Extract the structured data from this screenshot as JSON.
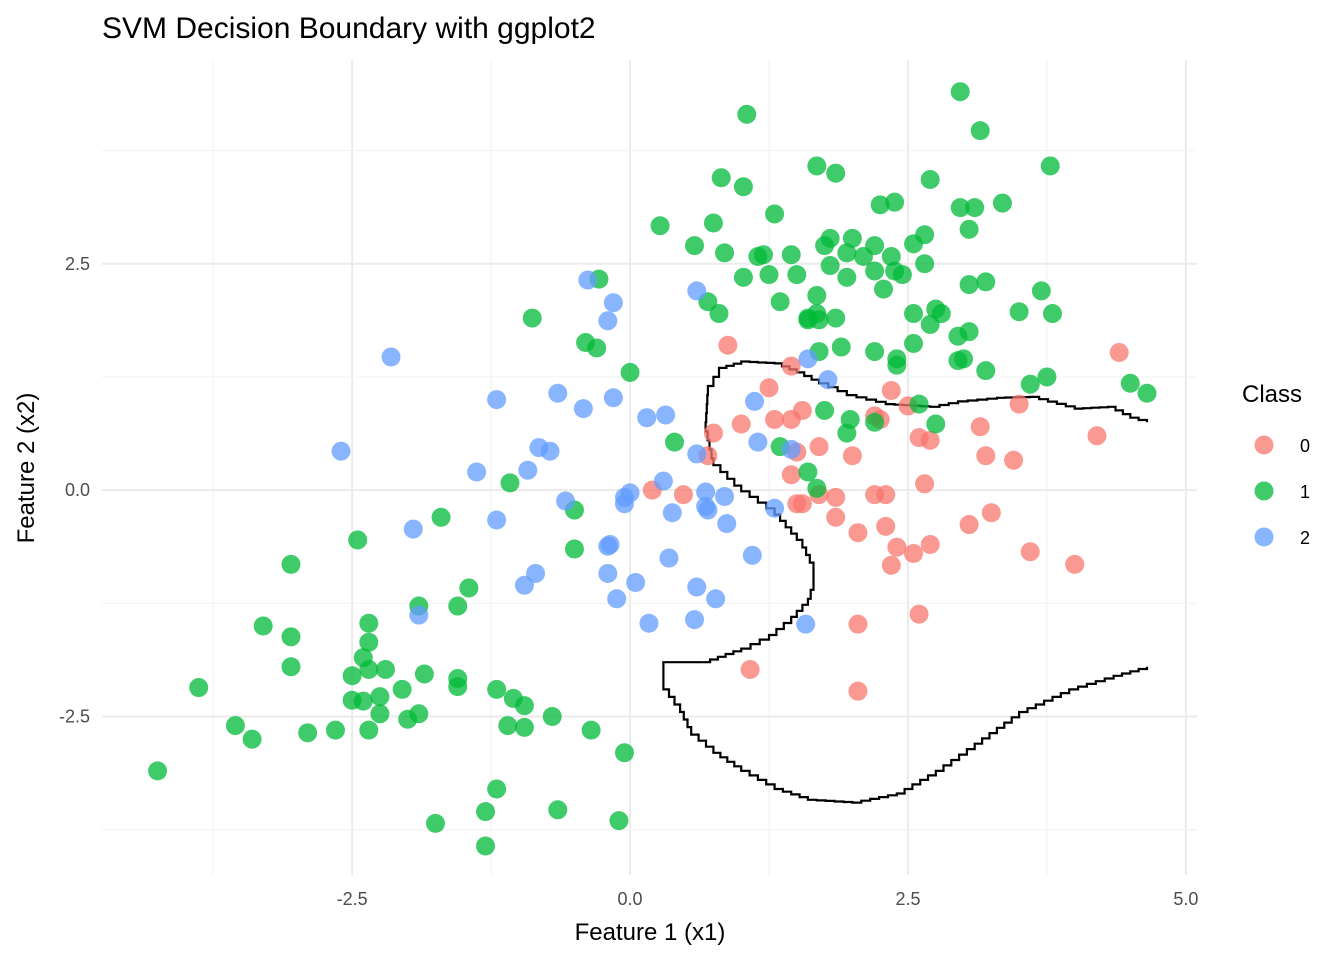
{
  "chart_data": {
    "type": "scatter",
    "title": "SVM Decision Boundary with ggplot2",
    "xlabel": "Feature 1 (x1)",
    "ylabel": "Feature 2 (x2)",
    "xlim": [
      -4.75,
      5.1
    ],
    "ylim": [
      -4.25,
      4.75
    ],
    "x_ticks": [
      -2.5,
      0.0,
      2.5,
      5.0
    ],
    "x_tick_labels": [
      "-2.5",
      "0.0",
      "2.5",
      "5.0"
    ],
    "y_ticks": [
      -2.5,
      0.0,
      2.5
    ],
    "y_tick_labels": [
      "-2.5",
      "0.0",
      "2.5"
    ],
    "grid": true,
    "legend": {
      "title": "Class",
      "position": "right"
    },
    "series": [
      {
        "name": "0",
        "color": "#F8766D",
        "points": [
          [
            0.88,
            1.6
          ],
          [
            1.25,
            1.13
          ],
          [
            1.45,
            1.37
          ],
          [
            2.35,
            1.1
          ],
          [
            2.5,
            0.93
          ],
          [
            2.2,
            0.82
          ],
          [
            1.0,
            0.73
          ],
          [
            0.75,
            0.63
          ],
          [
            0.7,
            0.38
          ],
          [
            1.3,
            0.78
          ],
          [
            1.45,
            0.78
          ],
          [
            1.55,
            0.88
          ],
          [
            2.25,
            0.78
          ],
          [
            1.5,
            0.42
          ],
          [
            1.7,
            0.48
          ],
          [
            2.0,
            0.38
          ],
          [
            3.15,
            0.7
          ],
          [
            4.4,
            1.52
          ],
          [
            4.2,
            0.6
          ],
          [
            3.5,
            0.95
          ],
          [
            2.7,
            0.55
          ],
          [
            2.6,
            0.58
          ],
          [
            3.2,
            0.38
          ],
          [
            3.45,
            0.33
          ],
          [
            2.65,
            0.07
          ],
          [
            1.45,
            0.17
          ],
          [
            1.7,
            -0.05
          ],
          [
            1.85,
            -0.08
          ],
          [
            1.5,
            -0.15
          ],
          [
            1.55,
            -0.15
          ],
          [
            1.85,
            -0.3
          ],
          [
            2.2,
            -0.05
          ],
          [
            2.3,
            -0.05
          ],
          [
            0.2,
            0.0
          ],
          [
            0.48,
            -0.05
          ],
          [
            2.05,
            -0.47
          ],
          [
            2.3,
            -0.4
          ],
          [
            2.4,
            -0.63
          ],
          [
            2.7,
            -0.6
          ],
          [
            2.55,
            -0.7
          ],
          [
            3.05,
            -0.38
          ],
          [
            3.25,
            -0.25
          ],
          [
            3.6,
            -0.68
          ],
          [
            4.0,
            -0.82
          ],
          [
            2.35,
            -0.83
          ],
          [
            2.6,
            -1.37
          ],
          [
            2.05,
            -1.48
          ],
          [
            1.08,
            -1.98
          ],
          [
            2.05,
            -2.22
          ]
        ]
      },
      {
        "name": "1",
        "color": "#00BA38",
        "points": [
          [
            2.97,
            4.4
          ],
          [
            1.05,
            4.15
          ],
          [
            3.15,
            3.97
          ],
          [
            1.68,
            3.58
          ],
          [
            1.85,
            3.5
          ],
          [
            2.7,
            3.43
          ],
          [
            0.82,
            3.45
          ],
          [
            1.02,
            3.35
          ],
          [
            3.78,
            3.58
          ],
          [
            3.1,
            3.12
          ],
          [
            2.97,
            3.12
          ],
          [
            2.25,
            3.15
          ],
          [
            2.38,
            3.18
          ],
          [
            3.35,
            3.17
          ],
          [
            1.3,
            3.05
          ],
          [
            0.75,
            2.95
          ],
          [
            0.27,
            2.92
          ],
          [
            1.8,
            2.78
          ],
          [
            2.0,
            2.78
          ],
          [
            1.75,
            2.7
          ],
          [
            0.58,
            2.7
          ],
          [
            2.2,
            2.7
          ],
          [
            2.55,
            2.72
          ],
          [
            2.65,
            2.82
          ],
          [
            3.05,
            2.88
          ],
          [
            1.15,
            2.58
          ],
          [
            1.2,
            2.6
          ],
          [
            1.45,
            2.6
          ],
          [
            1.95,
            2.62
          ],
          [
            2.1,
            2.58
          ],
          [
            2.35,
            2.58
          ],
          [
            1.25,
            2.38
          ],
          [
            1.5,
            2.38
          ],
          [
            1.8,
            2.48
          ],
          [
            2.2,
            2.42
          ],
          [
            2.38,
            2.42
          ],
          [
            2.45,
            2.38
          ],
          [
            2.65,
            2.5
          ],
          [
            1.95,
            2.35
          ],
          [
            0.85,
            2.62
          ],
          [
            1.02,
            2.35
          ],
          [
            -0.28,
            2.33
          ],
          [
            3.05,
            2.27
          ],
          [
            3.2,
            2.3
          ],
          [
            3.7,
            2.2
          ],
          [
            2.28,
            2.22
          ],
          [
            1.68,
            2.15
          ],
          [
            0.7,
            2.08
          ],
          [
            1.35,
            2.08
          ],
          [
            2.75,
            2.0
          ],
          [
            2.8,
            1.95
          ],
          [
            3.5,
            1.97
          ],
          [
            3.8,
            1.95
          ],
          [
            0.8,
            1.95
          ],
          [
            1.6,
            1.88
          ],
          [
            1.7,
            1.88
          ],
          [
            1.68,
            1.95
          ],
          [
            1.85,
            1.9
          ],
          [
            2.55,
            1.95
          ],
          [
            2.55,
            1.62
          ],
          [
            2.7,
            1.83
          ],
          [
            2.95,
            1.7
          ],
          [
            3.05,
            1.75
          ],
          [
            -0.88,
            1.9
          ],
          [
            -0.4,
            1.63
          ],
          [
            -0.3,
            1.57
          ],
          [
            1.9,
            1.58
          ],
          [
            1.7,
            1.53
          ],
          [
            2.2,
            1.53
          ],
          [
            2.4,
            1.45
          ],
          [
            2.4,
            1.38
          ],
          [
            2.95,
            1.43
          ],
          [
            3.0,
            1.45
          ],
          [
            3.2,
            1.32
          ],
          [
            3.6,
            1.17
          ],
          [
            3.75,
            1.25
          ],
          [
            4.5,
            1.18
          ],
          [
            4.65,
            1.07
          ],
          [
            0.0,
            1.3
          ],
          [
            2.6,
            0.95
          ],
          [
            1.75,
            0.88
          ],
          [
            1.98,
            0.78
          ],
          [
            2.2,
            0.75
          ],
          [
            2.75,
            0.73
          ],
          [
            1.95,
            0.63
          ],
          [
            0.4,
            0.53
          ],
          [
            1.35,
            0.48
          ],
          [
            1.6,
            0.2
          ],
          [
            1.68,
            0.02
          ],
          [
            -1.08,
            0.08
          ],
          [
            -0.5,
            -0.22
          ],
          [
            -1.7,
            -0.3
          ],
          [
            -2.45,
            -0.55
          ],
          [
            -0.5,
            -0.65
          ],
          [
            -3.05,
            -0.82
          ],
          [
            -1.45,
            -1.08
          ],
          [
            -1.55,
            -1.28
          ],
          [
            -1.9,
            -1.28
          ],
          [
            -2.35,
            -1.47
          ],
          [
            -3.3,
            -1.5
          ],
          [
            -3.05,
            -1.62
          ],
          [
            -2.35,
            -1.68
          ],
          [
            -2.4,
            -1.85
          ],
          [
            -2.35,
            -1.98
          ],
          [
            -3.05,
            -1.95
          ],
          [
            -2.5,
            -2.05
          ],
          [
            -2.2,
            -1.98
          ],
          [
            -1.85,
            -2.03
          ],
          [
            -1.55,
            -2.08
          ],
          [
            -2.05,
            -2.2
          ],
          [
            -2.25,
            -2.28
          ],
          [
            -1.55,
            -2.17
          ],
          [
            -1.2,
            -2.2
          ],
          [
            -1.05,
            -2.3
          ],
          [
            -0.95,
            -2.38
          ],
          [
            -2.4,
            -2.33
          ],
          [
            -2.5,
            -2.32
          ],
          [
            -3.88,
            -2.18
          ],
          [
            -2.25,
            -2.47
          ],
          [
            -2.0,
            -2.53
          ],
          [
            -1.9,
            -2.47
          ],
          [
            -0.7,
            -2.5
          ],
          [
            -2.35,
            -2.65
          ],
          [
            -2.65,
            -2.65
          ],
          [
            -2.9,
            -2.68
          ],
          [
            -3.55,
            -2.6
          ],
          [
            -3.4,
            -2.75
          ],
          [
            -1.1,
            -2.6
          ],
          [
            -0.95,
            -2.62
          ],
          [
            -0.35,
            -2.65
          ],
          [
            -0.05,
            -2.9
          ],
          [
            -1.2,
            -3.3
          ],
          [
            -4.25,
            -3.1
          ],
          [
            -1.3,
            -3.55
          ],
          [
            -0.65,
            -3.53
          ],
          [
            -1.75,
            -3.68
          ],
          [
            -0.1,
            -3.65
          ],
          [
            -1.3,
            -3.93
          ],
          [
            1.6,
            1.9
          ]
        ]
      },
      {
        "name": "2",
        "color": "#619CFF",
        "points": [
          [
            -0.38,
            2.32
          ],
          [
            -0.15,
            2.07
          ],
          [
            -0.2,
            1.87
          ],
          [
            0.6,
            2.2
          ],
          [
            -2.15,
            1.47
          ],
          [
            -1.2,
            1.0
          ],
          [
            -0.65,
            1.07
          ],
          [
            -0.42,
            0.9
          ],
          [
            -0.15,
            1.02
          ],
          [
            1.6,
            1.45
          ],
          [
            1.78,
            1.22
          ],
          [
            1.12,
            0.98
          ],
          [
            0.15,
            0.8
          ],
          [
            0.32,
            0.83
          ],
          [
            1.15,
            0.53
          ],
          [
            1.45,
            0.45
          ],
          [
            -2.6,
            0.43
          ],
          [
            -0.82,
            0.47
          ],
          [
            -0.72,
            0.43
          ],
          [
            -1.38,
            0.2
          ],
          [
            -0.92,
            0.22
          ],
          [
            0.6,
            0.4
          ],
          [
            0.3,
            0.1
          ],
          [
            -0.05,
            -0.08
          ],
          [
            0.0,
            -0.03
          ],
          [
            -0.05,
            -0.15
          ],
          [
            -0.58,
            -0.12
          ],
          [
            0.68,
            -0.02
          ],
          [
            0.68,
            -0.18
          ],
          [
            0.85,
            -0.07
          ],
          [
            0.38,
            -0.25
          ],
          [
            0.7,
            -0.22
          ],
          [
            0.87,
            -0.37
          ],
          [
            1.3,
            -0.2
          ],
          [
            -1.95,
            -0.43
          ],
          [
            -1.2,
            -0.33
          ],
          [
            -0.18,
            -0.6
          ],
          [
            -0.2,
            -0.62
          ],
          [
            0.35,
            -0.75
          ],
          [
            1.1,
            -0.72
          ],
          [
            -0.2,
            -0.92
          ],
          [
            -0.85,
            -0.92
          ],
          [
            -0.95,
            -1.05
          ],
          [
            0.05,
            -1.02
          ],
          [
            0.6,
            -1.07
          ],
          [
            -0.12,
            -1.2
          ],
          [
            0.77,
            -1.2
          ],
          [
            -1.9,
            -1.38
          ],
          [
            0.58,
            -1.43
          ],
          [
            0.17,
            -1.47
          ],
          [
            1.58,
            -1.48
          ]
        ]
      }
    ],
    "decision_boundary": [
      [
        0.65,
        -1.9
      ],
      [
        1.0,
        -1.75
      ],
      [
        1.25,
        -1.6
      ],
      [
        1.45,
        -1.4
      ],
      [
        1.6,
        -1.2
      ],
      [
        1.65,
        -1.0
      ],
      [
        1.65,
        -0.8
      ],
      [
        1.55,
        -0.55
      ],
      [
        1.3,
        -0.2
      ],
      [
        1.0,
        0.05
      ],
      [
        0.75,
        0.35
      ],
      [
        0.68,
        0.75
      ],
      [
        0.7,
        1.15
      ],
      [
        0.8,
        1.35
      ],
      [
        1.0,
        1.42
      ],
      [
        1.3,
        1.4
      ],
      [
        1.5,
        1.3
      ],
      [
        1.7,
        1.18
      ],
      [
        1.95,
        1.05
      ],
      [
        2.3,
        0.95
      ],
      [
        2.7,
        0.92
      ],
      [
        2.95,
        0.98
      ],
      [
        3.3,
        1.02
      ],
      [
        3.6,
        1.03
      ],
      [
        4.0,
        0.9
      ],
      [
        4.3,
        0.92
      ],
      [
        4.5,
        0.8
      ],
      [
        4.65,
        0.75
      ]
    ],
    "decision_boundary_2": [
      [
        0.65,
        -1.9
      ],
      [
        0.3,
        -1.9
      ],
      [
        0.3,
        -2.2
      ],
      [
        0.45,
        -2.45
      ],
      [
        0.55,
        -2.7
      ],
      [
        0.75,
        -2.9
      ],
      [
        1.0,
        -3.1
      ],
      [
        1.3,
        -3.3
      ],
      [
        1.6,
        -3.42
      ],
      [
        2.0,
        -3.45
      ],
      [
        2.4,
        -3.35
      ],
      [
        2.75,
        -3.1
      ],
      [
        3.1,
        -2.8
      ],
      [
        3.5,
        -2.45
      ],
      [
        3.95,
        -2.2
      ],
      [
        4.35,
        -2.05
      ],
      [
        4.65,
        -1.95
      ]
    ]
  }
}
